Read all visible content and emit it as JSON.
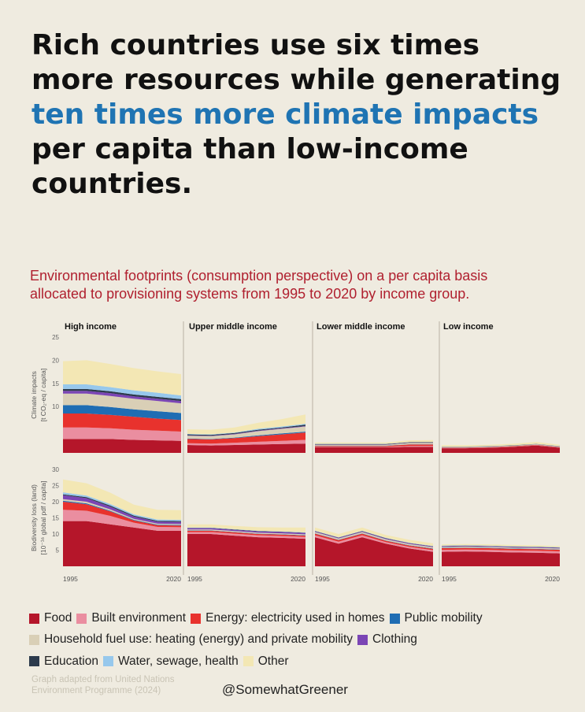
{
  "headline": {
    "line1": "Rich countries use six times",
    "line2": "more resources while generating",
    "highlight": "ten times more climate impacts",
    "line4": "per capita than low-income",
    "line5": "countries."
  },
  "subtitle": {
    "line1": "Environmental footprints (consumption perspective) on a per capita basis",
    "line2": "allocated to provisioning systems from 1995 to 2020 by income group."
  },
  "colors": {
    "headline_highlight": "#1f74b3",
    "subtitle": "#b0202f"
  },
  "chart_data": {
    "type": "area",
    "stacked": true,
    "panels": [
      "High income",
      "Upper middle income",
      "Lower middle income",
      "Low income"
    ],
    "x": [
      1995,
      2000,
      2005,
      2010,
      2015,
      2020
    ],
    "x_tick_labels": [
      "1995",
      "2020"
    ],
    "categories": [
      {
        "key": "food",
        "name": "Food",
        "color": "#b5162a"
      },
      {
        "key": "built",
        "name": "Built environment",
        "color": "#ea8ea0"
      },
      {
        "key": "energy",
        "name": "Energy: electricity used in homes",
        "color": "#e8322d"
      },
      {
        "key": "mobility",
        "name": "Public mobility",
        "color": "#1f6db3"
      },
      {
        "key": "fuel",
        "name": "Household fuel use: heating (energy) and private mobility",
        "color": "#d9cfb6"
      },
      {
        "key": "clothing",
        "name": "Clothing",
        "color": "#7b45b5"
      },
      {
        "key": "education",
        "name": "Education",
        "color": "#2c3a4c"
      },
      {
        "key": "water",
        "name": "Water, sewage, health",
        "color": "#97c8ec"
      },
      {
        "key": "other",
        "name": "Other",
        "color": "#f3e7b4"
      }
    ],
    "rows": [
      {
        "metric": "Climate impacts",
        "ylabel_1": "Climate impacts",
        "ylabel_2": "[t CO₂-eq / capita]",
        "ylim": [
          0,
          25
        ],
        "yticks": [
          10,
          15,
          20,
          25
        ],
        "panels": [
          {
            "food": [
              3,
              3,
              3,
              2.8,
              2.7,
              2.6
            ],
            "built": [
              2.5,
              2.5,
              2.3,
              2.2,
              2.1,
              2
            ],
            "energy": [
              3,
              3,
              2.9,
              2.8,
              2.6,
              2.5
            ],
            "mobility": [
              1.8,
              1.8,
              1.7,
              1.6,
              1.6,
              1.5
            ],
            "fuel": [
              2.5,
              2.5,
              2.4,
              2.3,
              2.2,
              2.1
            ],
            "clothing": [
              0.6,
              0.6,
              0.6,
              0.5,
              0.5,
              0.5
            ],
            "education": [
              0.4,
              0.4,
              0.4,
              0.4,
              0.4,
              0.4
            ],
            "water": [
              1,
              1,
              0.9,
              0.9,
              0.9,
              0.8
            ],
            "other": [
              5,
              5.2,
              5,
              4.8,
              4.6,
              4.6
            ]
          },
          {
            "food": [
              1.7,
              1.6,
              1.7,
              1.8,
              1.9,
              2
            ],
            "built": [
              0.4,
              0.4,
              0.5,
              0.6,
              0.7,
              0.8
            ],
            "energy": [
              0.9,
              0.9,
              1,
              1.2,
              1.4,
              1.6
            ],
            "mobility": [
              0.1,
              0.1,
              0.1,
              0.2,
              0.2,
              0.2
            ],
            "fuel": [
              0.6,
              0.6,
              0.7,
              0.9,
              1,
              1.1
            ],
            "clothing": [
              0.1,
              0.1,
              0.1,
              0.1,
              0.1,
              0.1
            ],
            "education": [
              0.2,
              0.2,
              0.2,
              0.2,
              0.2,
              0.3
            ],
            "water": [
              0.1,
              0.1,
              0.1,
              0.2,
              0.2,
              0.2
            ],
            "other": [
              1,
              1,
              1.1,
              1.3,
              1.6,
              2
            ]
          },
          {
            "food": [
              1.2,
              1.2,
              1.2,
              1.2,
              1.3,
              1.3
            ],
            "built": [
              0.1,
              0.1,
              0.1,
              0.1,
              0.2,
              0.2
            ],
            "energy": [
              0.2,
              0.2,
              0.2,
              0.2,
              0.3,
              0.3
            ],
            "mobility": [
              0.05,
              0.05,
              0.05,
              0.05,
              0.05,
              0.05
            ],
            "fuel": [
              0.2,
              0.2,
              0.2,
              0.2,
              0.3,
              0.3
            ],
            "clothing": [
              0.05,
              0.05,
              0.05,
              0.05,
              0.05,
              0.05
            ],
            "education": [
              0.1,
              0.1,
              0.1,
              0.1,
              0.1,
              0.1
            ],
            "water": [
              0.05,
              0.05,
              0.05,
              0.05,
              0.05,
              0.05
            ],
            "other": [
              0.3,
              0.3,
              0.3,
              0.3,
              0.35,
              0.4
            ]
          },
          {
            "food": [
              1,
              1,
              1.1,
              1.3,
              1.6,
              1.1
            ],
            "built": [
              0.05,
              0.05,
              0.05,
              0.05,
              0.05,
              0.05
            ],
            "energy": [
              0.1,
              0.1,
              0.1,
              0.1,
              0.1,
              0.1
            ],
            "mobility": [
              0.02,
              0.02,
              0.02,
              0.02,
              0.02,
              0.02
            ],
            "fuel": [
              0.1,
              0.1,
              0.1,
              0.1,
              0.1,
              0.1
            ],
            "clothing": [
              0.02,
              0.02,
              0.02,
              0.02,
              0.02,
              0.02
            ],
            "education": [
              0.05,
              0.05,
              0.05,
              0.05,
              0.05,
              0.05
            ],
            "water": [
              0.02,
              0.02,
              0.02,
              0.02,
              0.02,
              0.02
            ],
            "other": [
              0.3,
              0.3,
              0.3,
              0.3,
              0.4,
              0.3
            ]
          }
        ]
      },
      {
        "metric": "Biodiversity loss (land)",
        "ylabel_1": "Biodiversity loss (land)",
        "ylabel_2": "[10⁻¹⁶ global pdf / capita]",
        "ylim": [
          0,
          30
        ],
        "yticks": [
          5,
          10,
          15,
          20,
          25,
          30
        ],
        "panels": [
          {
            "food": [
              14,
              14,
              13,
              12,
              11,
              11
            ],
            "built": [
              3.5,
              3.2,
              2.6,
              1.5,
              1.2,
              1.1
            ],
            "energy": [
              2.5,
              2,
              1.4,
              0.7,
              0.5,
              0.5
            ],
            "mobility": [
              0.3,
              0.3,
              0.2,
              0.2,
              0.2,
              0.2
            ],
            "fuel": [
              0.5,
              0.5,
              0.4,
              0.3,
              0.3,
              0.3
            ],
            "clothing": [
              1.2,
              1.1,
              0.9,
              0.7,
              0.6,
              0.6
            ],
            "education": [
              0.3,
              0.3,
              0.3,
              0.3,
              0.3,
              0.3
            ],
            "water": [
              0.6,
              0.5,
              0.5,
              0.4,
              0.4,
              0.4
            ],
            "other": [
              4,
              3.8,
              3.5,
              3,
              3,
              3
            ]
          },
          {
            "food": [
              10,
              10,
              9.5,
              9,
              8.8,
              8.5
            ],
            "built": [
              0.6,
              0.6,
              0.6,
              0.6,
              0.6,
              0.6
            ],
            "energy": [
              0.4,
              0.4,
              0.4,
              0.4,
              0.4,
              0.4
            ],
            "mobility": [
              0.1,
              0.1,
              0.1,
              0.1,
              0.1,
              0.1
            ],
            "fuel": [
              0.3,
              0.3,
              0.3,
              0.3,
              0.3,
              0.3
            ],
            "clothing": [
              0.4,
              0.4,
              0.4,
              0.4,
              0.4,
              0.4
            ],
            "education": [
              0.1,
              0.1,
              0.1,
              0.1,
              0.1,
              0.1
            ],
            "water": [
              0.1,
              0.1,
              0.1,
              0.1,
              0.1,
              0.1
            ],
            "other": [
              1,
              1,
              1,
              1.1,
              1.2,
              1.5
            ]
          },
          {
            "food": [
              9,
              7,
              9,
              7,
              5.5,
              4.5
            ],
            "built": [
              0.6,
              0.6,
              0.6,
              0.5,
              0.5,
              0.5
            ],
            "energy": [
              0.5,
              0.5,
              0.5,
              0.4,
              0.4,
              0.4
            ],
            "mobility": [
              0.1,
              0.1,
              0.1,
              0.1,
              0.1,
              0.1
            ],
            "fuel": [
              0.4,
              0.4,
              0.4,
              0.4,
              0.4,
              0.4
            ],
            "clothing": [
              0.2,
              0.2,
              0.2,
              0.2,
              0.2,
              0.2
            ],
            "education": [
              0.1,
              0.1,
              0.1,
              0.1,
              0.1,
              0.1
            ],
            "water": [
              0.1,
              0.1,
              0.1,
              0.1,
              0.1,
              0.1
            ],
            "other": [
              1,
              1,
              1,
              0.9,
              0.9,
              0.8
            ]
          },
          {
            "food": [
              4.5,
              4.6,
              4.5,
              4.3,
              4.2,
              4
            ],
            "built": [
              0.6,
              0.6,
              0.6,
              0.6,
              0.6,
              0.6
            ],
            "energy": [
              0.5,
              0.5,
              0.5,
              0.5,
              0.5,
              0.5
            ],
            "mobility": [
              0.1,
              0.1,
              0.1,
              0.1,
              0.1,
              0.1
            ],
            "fuel": [
              0.3,
              0.3,
              0.3,
              0.3,
              0.3,
              0.3
            ],
            "clothing": [
              0.2,
              0.2,
              0.2,
              0.2,
              0.2,
              0.2
            ],
            "education": [
              0.1,
              0.1,
              0.1,
              0.1,
              0.1,
              0.1
            ],
            "water": [
              0.1,
              0.1,
              0.1,
              0.1,
              0.1,
              0.1
            ],
            "other": [
              0.4,
              0.4,
              0.4,
              0.4,
              0.4,
              0.4
            ]
          }
        ]
      }
    ]
  },
  "source_line1": "Graph adapted from United Nations",
  "source_line2": "Environment Programme (2024)",
  "handle": "@SomewhatGreener"
}
